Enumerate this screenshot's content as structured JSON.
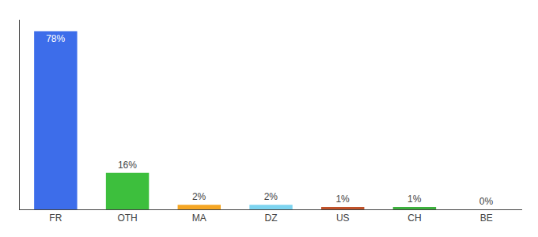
{
  "chart_data": {
    "type": "bar",
    "categories": [
      "FR",
      "OTH",
      "MA",
      "DZ",
      "US",
      "CH",
      "BE"
    ],
    "values": [
      78,
      16,
      2,
      2,
      1,
      1,
      0
    ],
    "value_labels": [
      "78%",
      "16%",
      "2%",
      "2%",
      "1%",
      "1%",
      "0%"
    ],
    "colors": [
      "#3d6dea",
      "#3dbf3d",
      "#f5a623",
      "#7dd4f0",
      "#c0522a",
      "#3db03d",
      "#cccccc"
    ],
    "ylim": [
      0,
      83
    ],
    "data_labels": true,
    "tick_labels": "x",
    "grid": false
  }
}
